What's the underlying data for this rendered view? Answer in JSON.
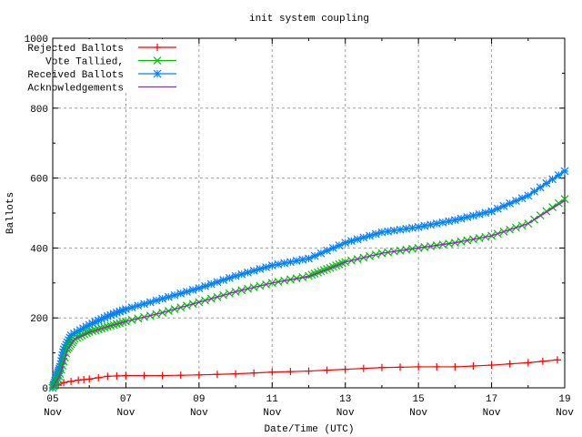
{
  "chart_data": {
    "type": "line",
    "title": "init system coupling",
    "xlabel": "Date/Time (UTC)",
    "ylabel": "Ballots",
    "xlim": [
      5,
      19
    ],
    "ylim": [
      0,
      1000
    ],
    "x_unit": "day of November (UTC)",
    "x_ticks": [
      {
        "value": 5,
        "day": "05",
        "month": "Nov"
      },
      {
        "value": 7,
        "day": "07",
        "month": "Nov"
      },
      {
        "value": 9,
        "day": "09",
        "month": "Nov"
      },
      {
        "value": 11,
        "day": "11",
        "month": "Nov"
      },
      {
        "value": 13,
        "day": "13",
        "month": "Nov"
      },
      {
        "value": 15,
        "day": "15",
        "month": "Nov"
      },
      {
        "value": 17,
        "day": "17",
        "month": "Nov"
      },
      {
        "value": 19,
        "day": "19",
        "month": "Nov"
      }
    ],
    "y_ticks": [
      "0",
      "200",
      "400",
      "600",
      "800",
      "1000"
    ],
    "grid": true,
    "legend_position": "top-left",
    "series": [
      {
        "name": "Rejected Ballots",
        "color": "#ff0000",
        "marker": "plus",
        "x": [
          5.0,
          5.3,
          5.7,
          6.0,
          6.5,
          7.0,
          8.0,
          9.0,
          10.0,
          11.0,
          12.0,
          13.0,
          14.0,
          15.0,
          16.0,
          17.0,
          18.0,
          18.8
        ],
        "y": [
          0,
          15,
          22,
          25,
          33,
          35,
          35,
          37,
          40,
          45,
          48,
          53,
          58,
          60,
          60,
          65,
          72,
          80
        ]
      },
      {
        "name": "Vote Tallied,",
        "color": "#00c000",
        "marker": "cross",
        "x": [
          5.0,
          5.2,
          5.4,
          5.6,
          6.0,
          6.5,
          7.0,
          8.0,
          9.0,
          10.0,
          11.0,
          12.0,
          12.5,
          13.0,
          14.0,
          15.0,
          16.0,
          17.0,
          18.0,
          19.0
        ],
        "y": [
          0,
          40,
          110,
          140,
          160,
          175,
          190,
          215,
          245,
          275,
          300,
          320,
          340,
          360,
          385,
          400,
          415,
          435,
          470,
          540
        ]
      },
      {
        "name": "Received Ballots",
        "color": "#0080ff",
        "marker": "star",
        "x": [
          5.0,
          5.1,
          5.2,
          5.3,
          5.5,
          6.0,
          6.5,
          7.0,
          8.0,
          9.0,
          10.0,
          11.0,
          12.0,
          13.0,
          14.0,
          15.0,
          16.0,
          17.0,
          18.0,
          19.0
        ],
        "y": [
          0,
          30,
          60,
          110,
          150,
          180,
          205,
          225,
          255,
          285,
          320,
          350,
          370,
          415,
          445,
          460,
          480,
          505,
          550,
          620
        ]
      },
      {
        "name": "Acknowledgements",
        "color": "#c000ff",
        "marker": "none",
        "x": [
          5.0,
          5.2,
          5.4,
          5.6,
          6.0,
          6.5,
          7.0,
          8.0,
          9.0,
          10.0,
          11.0,
          12.0,
          12.5,
          13.0,
          14.0,
          15.0,
          16.0,
          17.0,
          18.0,
          19.0
        ],
        "y": [
          0,
          38,
          108,
          140,
          158,
          175,
          190,
          215,
          245,
          275,
          300,
          318,
          338,
          360,
          385,
          400,
          415,
          435,
          470,
          535
        ]
      }
    ]
  }
}
